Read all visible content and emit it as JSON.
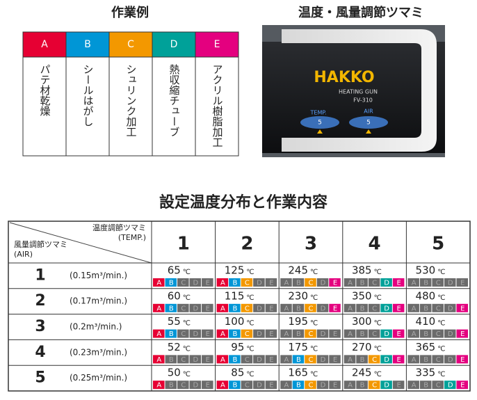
{
  "work_examples": {
    "title": "作業例",
    "letters": [
      "A",
      "B",
      "C",
      "D",
      "E"
    ],
    "colors": [
      "#e60033",
      "#0096d6",
      "#f39800",
      "#00a199",
      "#e4007f"
    ],
    "items": [
      "パテ材乾燥",
      "シールはがし",
      "シュリンク加工",
      "熱収縮チューブ",
      "アクリル樹脂加工"
    ]
  },
  "knob_photo": {
    "title": "温度・風量調節ツマミ",
    "brand": "HAKKO",
    "product": "HEATING GUN",
    "model": "FV-310",
    "temp_label": "TEMP.",
    "air_label": "AIR",
    "temp_setting": 5,
    "air_setting": 5
  },
  "table": {
    "title": "設定温度分布と作業内容",
    "temp_header": "温度調節ツマミ",
    "temp_header_sub": "(TEMP.)",
    "air_header": "風量調節ツマミ",
    "air_header_sub": "(AIR)",
    "temp_levels": [
      1,
      2,
      3,
      4,
      5
    ],
    "unit": "℃",
    "rows": [
      {
        "air_level": 1,
        "airflow": "(0.15m³/min.)",
        "cells": [
          {
            "temp": 65,
            "on": [
              true,
              true,
              false,
              false,
              false
            ]
          },
          {
            "temp": 125,
            "on": [
              true,
              true,
              true,
              false,
              false
            ]
          },
          {
            "temp": 245,
            "on": [
              false,
              false,
              true,
              false,
              true
            ]
          },
          {
            "temp": 385,
            "on": [
              false,
              false,
              false,
              true,
              true
            ]
          },
          {
            "temp": 530,
            "on": [
              false,
              false,
              false,
              false,
              false
            ]
          }
        ]
      },
      {
        "air_level": 2,
        "airflow": "(0.17m³/min.)",
        "cells": [
          {
            "temp": 60,
            "on": [
              true,
              true,
              false,
              false,
              false
            ]
          },
          {
            "temp": 115,
            "on": [
              true,
              true,
              true,
              false,
              false
            ]
          },
          {
            "temp": 230,
            "on": [
              false,
              false,
              true,
              false,
              true
            ]
          },
          {
            "temp": 350,
            "on": [
              false,
              false,
              false,
              true,
              true
            ]
          },
          {
            "temp": 480,
            "on": [
              false,
              false,
              false,
              false,
              true
            ]
          }
        ]
      },
      {
        "air_level": 3,
        "airflow": "(0.2m³/min.)",
        "cells": [
          {
            "temp": 55,
            "on": [
              true,
              true,
              false,
              false,
              false
            ]
          },
          {
            "temp": 100,
            "on": [
              true,
              true,
              true,
              false,
              false
            ]
          },
          {
            "temp": 195,
            "on": [
              false,
              false,
              true,
              false,
              false
            ]
          },
          {
            "temp": 300,
            "on": [
              false,
              false,
              false,
              true,
              true
            ]
          },
          {
            "temp": 410,
            "on": [
              false,
              false,
              false,
              false,
              true
            ]
          }
        ]
      },
      {
        "air_level": 4,
        "airflow": "(0.23m³/min.)",
        "cells": [
          {
            "temp": 52,
            "on": [
              true,
              false,
              false,
              false,
              false
            ]
          },
          {
            "temp": 95,
            "on": [
              true,
              true,
              false,
              false,
              false
            ]
          },
          {
            "temp": 175,
            "on": [
              false,
              true,
              true,
              false,
              false
            ]
          },
          {
            "temp": 270,
            "on": [
              false,
              false,
              true,
              true,
              true
            ]
          },
          {
            "temp": 365,
            "on": [
              false,
              false,
              false,
              false,
              true
            ]
          }
        ]
      },
      {
        "air_level": 5,
        "airflow": "(0.25m³/min.)",
        "cells": [
          {
            "temp": 50,
            "on": [
              true,
              false,
              false,
              false,
              false
            ]
          },
          {
            "temp": 85,
            "on": [
              true,
              true,
              false,
              false,
              false
            ]
          },
          {
            "temp": 165,
            "on": [
              false,
              true,
              true,
              false,
              false
            ]
          },
          {
            "temp": 245,
            "on": [
              false,
              false,
              true,
              true,
              false
            ]
          },
          {
            "temp": 335,
            "on": [
              false,
              false,
              false,
              true,
              true
            ]
          }
        ]
      }
    ]
  }
}
